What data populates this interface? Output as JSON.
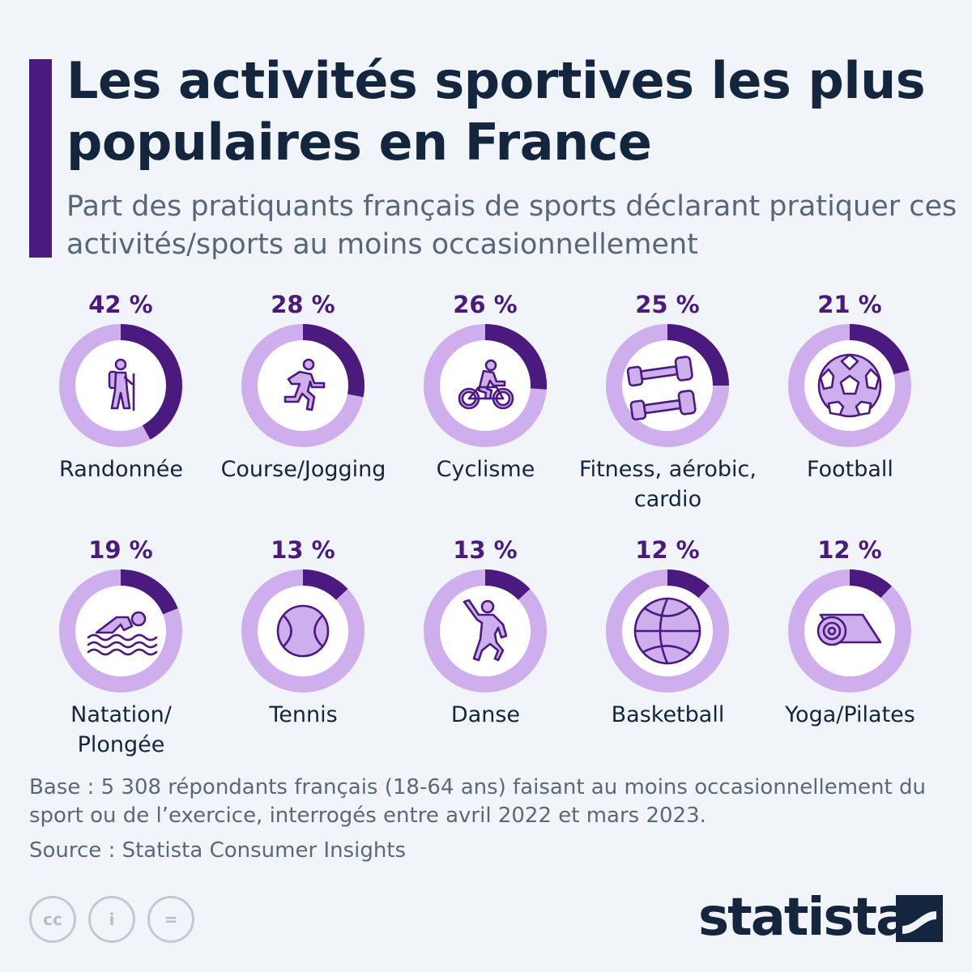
{
  "title": "Les activités sportives les plus populaires en France",
  "subtitle": "Part des pratiquants français de sports déclarant pratiquer ces activités/sports au moins occasionnellement",
  "chart_data": {
    "type": "donut",
    "title": "Les activités sportives les plus populaires en France",
    "subtitle": "Part des pratiquants français de sports déclarant pratiquer ces activités/sports au moins occasionnellement",
    "unit": "%",
    "ylim": [
      0,
      100
    ],
    "items": [
      {
        "category": "Randonnée",
        "value": 42,
        "label": "42 %",
        "icon": "hiker-icon"
      },
      {
        "category": "Course/Jogging",
        "value": 28,
        "label": "28 %",
        "icon": "runner-icon"
      },
      {
        "category": "Cyclisme",
        "value": 26,
        "label": "26 %",
        "icon": "cyclist-icon"
      },
      {
        "category": "Fitness, aérobic, cardio",
        "value": 25,
        "label": "25 %",
        "icon": "dumbbells-icon"
      },
      {
        "category": "Football",
        "value": 21,
        "label": "21 %",
        "icon": "soccer-ball-icon"
      },
      {
        "category": "Natation/ Plongée",
        "value": 19,
        "label": "19 %",
        "icon": "swimmer-icon"
      },
      {
        "category": "Tennis",
        "value": 13,
        "label": "13 %",
        "icon": "tennis-ball-icon"
      },
      {
        "category": "Danse",
        "value": 13,
        "label": "13 %",
        "icon": "dancer-icon"
      },
      {
        "category": "Basketball",
        "value": 12,
        "label": "12 %",
        "icon": "basketball-icon"
      },
      {
        "category": "Yoga/Pilates",
        "value": 12,
        "label": "12 %",
        "icon": "yoga-mat-icon"
      }
    ]
  },
  "footnote": "Base : 5 308 répondants français (18-64 ans) faisant au moins occasionnellement du sport ou de l’exercice, interrogés entre avril 2022 et mars 2023.",
  "source": "Source : Statista Consumer Insights",
  "license": {
    "cc": "cc",
    "by": "i",
    "nd": "="
  },
  "brand": "statista",
  "colors": {
    "accent": "#4a1a7e",
    "ring_background": "#cfaeee",
    "title": "#13263e",
    "text": "#5c6878"
  }
}
